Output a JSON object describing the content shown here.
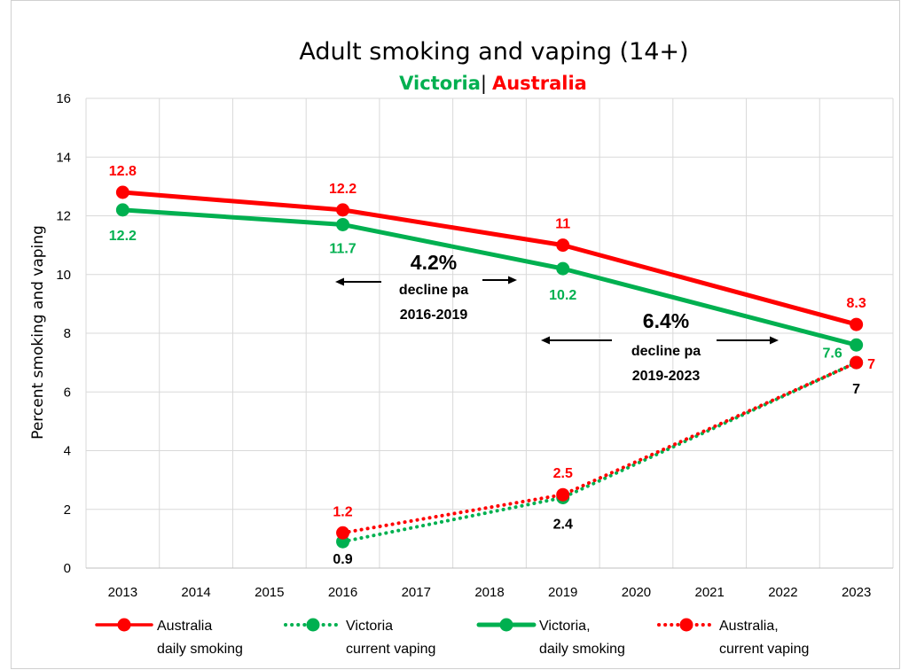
{
  "chart_data": {
    "type": "line",
    "title": "Adult smoking and vaping (14+)",
    "subtitle": {
      "victoria": "Victoria",
      "separator": "|",
      "australia": "Australia",
      "victoria_color": "#00b050",
      "australia_color": "#ff0000"
    },
    "ylabel": "Percent smoking and vaping",
    "xlabel": "",
    "categories": [
      "2013",
      "2014",
      "2015",
      "2016",
      "2017",
      "2018",
      "2019",
      "2020",
      "2021",
      "2022",
      "2023"
    ],
    "ylim": [
      0,
      16
    ],
    "yticks": [
      0,
      2,
      4,
      6,
      8,
      10,
      12,
      14,
      16
    ],
    "grid": true,
    "legend_position": "bottom",
    "series": [
      {
        "name": "Australia daily smoking",
        "legend_lines": [
          "Australia",
          "daily smoking"
        ],
        "color": "#ff0000",
        "style": "solid",
        "points": [
          {
            "x": "2013",
            "y": 12.8,
            "label": "12.8"
          },
          {
            "x": "2016",
            "y": 12.2,
            "label": "12.2"
          },
          {
            "x": "2019",
            "y": 11,
            "label": "11"
          },
          {
            "x": "2023",
            "y": 8.3,
            "label": "8.3"
          }
        ]
      },
      {
        "name": "Victoria current vaping",
        "legend_lines": [
          "Victoria",
          "current vaping"
        ],
        "color": "#00b050",
        "style": "dotted",
        "points": [
          {
            "x": "2016",
            "y": 0.9,
            "label": "0.9"
          },
          {
            "x": "2019",
            "y": 2.4,
            "label": "2.4"
          },
          {
            "x": "2023",
            "y": 7,
            "label": "7"
          }
        ]
      },
      {
        "name": "Victoria, daily smoking",
        "legend_lines": [
          "Victoria,",
          "daily smoking"
        ],
        "color": "#00b050",
        "style": "solid",
        "points": [
          {
            "x": "2013",
            "y": 12.2,
            "label": "12.2"
          },
          {
            "x": "2016",
            "y": 11.7,
            "label": "11.7"
          },
          {
            "x": "2019",
            "y": 10.2,
            "label": "10.2"
          },
          {
            "x": "2023",
            "y": 7.6,
            "label": "7.6"
          }
        ]
      },
      {
        "name": "Australia, current vaping",
        "legend_lines": [
          "Australia,",
          "current vaping"
        ],
        "color": "#ff0000",
        "style": "dotted",
        "points": [
          {
            "x": "2016",
            "y": 1.2,
            "label": "1.2"
          },
          {
            "x": "2019",
            "y": 2.5,
            "label": "2.5"
          },
          {
            "x": "2023",
            "y": 7,
            "label": "7"
          }
        ]
      }
    ],
    "annotations": [
      {
        "big": "4.2%",
        "line1": "decline pa",
        "line2": "2016-2019"
      },
      {
        "big": "6.4%",
        "line1": "decline pa",
        "line2": "2019-2023"
      }
    ]
  }
}
